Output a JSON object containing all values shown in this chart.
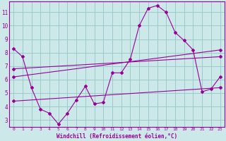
{
  "xlabel": "Windchill (Refroidissement éolien,°C)",
  "background_color": "#cce8e8",
  "grid_color": "#99cccc",
  "line_color": "#990099",
  "xlim": [
    -0.5,
    23.5
  ],
  "ylim": [
    2.5,
    11.8
  ],
  "xticks": [
    0,
    1,
    2,
    3,
    4,
    5,
    6,
    7,
    8,
    9,
    10,
    11,
    12,
    13,
    14,
    15,
    16,
    17,
    18,
    19,
    20,
    21,
    22,
    23
  ],
  "yticks": [
    3,
    4,
    5,
    6,
    7,
    8,
    9,
    10,
    11
  ],
  "series1_x": [
    0,
    1,
    2,
    3,
    4,
    5,
    6,
    7,
    8,
    9,
    10,
    11,
    12,
    13,
    14,
    15,
    16,
    17,
    18,
    19,
    20,
    21,
    22,
    23
  ],
  "series1_y": [
    8.3,
    7.7,
    5.4,
    3.8,
    3.5,
    2.7,
    3.5,
    4.5,
    5.5,
    4.2,
    4.3,
    6.5,
    6.5,
    7.5,
    10.0,
    11.3,
    11.5,
    11.0,
    9.5,
    8.9,
    8.2,
    5.1,
    5.3,
    6.2
  ],
  "series2_x": [
    0,
    23
  ],
  "series2_y": [
    6.2,
    8.2
  ],
  "series3_x": [
    0,
    23
  ],
  "series3_y": [
    6.8,
    7.7
  ],
  "series4_x": [
    0,
    23
  ],
  "series4_y": [
    4.4,
    5.4
  ],
  "xlabel_fontsize": 5.5,
  "tick_fontsize_x": 4.5,
  "tick_fontsize_y": 5.5
}
